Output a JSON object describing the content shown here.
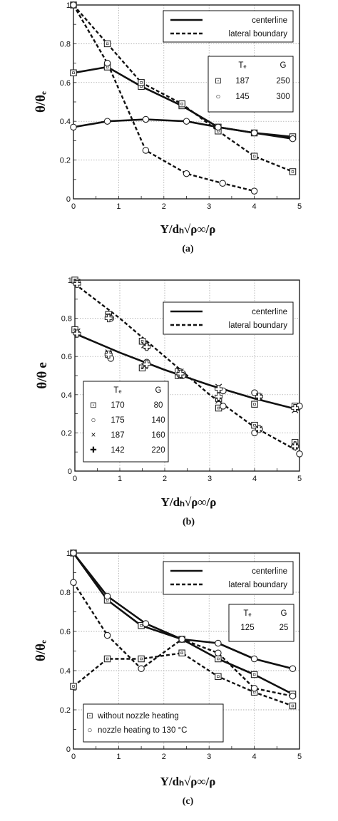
{
  "chart_data": [
    {
      "panel": "(a)",
      "type": "line",
      "xlabel": "Y/dₕ√ρ∞/ρ",
      "ylabel": "θ/θₑ",
      "xlim": [
        0,
        5
      ],
      "ylim": [
        0,
        1
      ],
      "xticks": [
        "0",
        "1",
        "2",
        "3",
        "4",
        "5"
      ],
      "yticks": [
        "0",
        "0.2",
        "0.4",
        "0.6",
        "0.8",
        "1"
      ],
      "grid": true,
      "legend": {
        "position": "top-right",
        "items": [
          "centerline",
          "lateral boundary"
        ]
      },
      "table": {
        "headers": [
          "Tₑ",
          "G"
        ],
        "rows": [
          [
            "⊡",
            "187",
            "250"
          ],
          [
            "○",
            "145",
            "300"
          ]
        ]
      },
      "series": [
        {
          "line": "centerline",
          "marker": "square",
          "x": [
            0,
            0.75,
            1.5,
            2.4,
            3.2,
            4.0,
            4.85
          ],
          "y": [
            0.65,
            0.68,
            0.58,
            0.48,
            0.37,
            0.34,
            0.32
          ]
        },
        {
          "line": "lateral boundary",
          "marker": "square",
          "x": [
            0,
            0.75,
            1.5,
            2.4,
            3.2,
            4.0,
            4.85
          ],
          "y": [
            1.0,
            0.8,
            0.6,
            0.49,
            0.35,
            0.22,
            0.14
          ]
        },
        {
          "line": "centerline",
          "marker": "circle",
          "x": [
            0,
            0.75,
            1.6,
            2.5,
            3.2,
            4.0,
            4.85
          ],
          "y": [
            0.37,
            0.4,
            0.41,
            0.4,
            0.37,
            0.34,
            0.31
          ]
        },
        {
          "line": "lateral boundary",
          "marker": "circle",
          "x": [
            0,
            0.75,
            1.6,
            2.5,
            3.3,
            4.0
          ],
          "y": [
            1.0,
            0.7,
            0.25,
            0.13,
            0.08,
            0.04
          ]
        }
      ]
    },
    {
      "panel": "(b)",
      "type": "line",
      "xlabel": "Y/dₕ√ρ∞/ρ",
      "ylabel": "θ/θ",
      "ylabel_sub": "e",
      "xlim": [
        0,
        5
      ],
      "ylim": [
        0,
        1
      ],
      "xticks": [
        "0",
        "1",
        "2",
        "3",
        "4",
        "5"
      ],
      "yticks": [
        "0",
        "0.2",
        "0.4",
        "0.6",
        "0.8",
        "1"
      ],
      "grid": true,
      "legend": {
        "position": "top-right",
        "items": [
          "centerline",
          "lateral boundary"
        ]
      },
      "table": {
        "headers": [
          "Tₑ",
          "G"
        ],
        "rows": [
          [
            "⊡",
            "170",
            "80"
          ],
          [
            "○",
            "175",
            "140"
          ],
          [
            "×",
            "187",
            "160"
          ],
          [
            "✚",
            "142",
            "220"
          ]
        ]
      },
      "fits": [
        {
          "line": "centerline",
          "x": [
            0,
            1,
            2,
            3,
            4,
            5
          ],
          "y": [
            0.72,
            0.62,
            0.53,
            0.45,
            0.38,
            0.32
          ]
        },
        {
          "line": "lateral boundary",
          "x": [
            0,
            1,
            2,
            3,
            4,
            5
          ],
          "y": [
            0.98,
            0.8,
            0.6,
            0.4,
            0.23,
            0.1
          ]
        }
      ],
      "series": [
        {
          "marker": "square",
          "x": [
            0,
            0.75,
            1.5,
            2.3,
            3.2,
            4.0,
            4.9,
            0,
            0.75,
            1.5,
            2.3,
            3.2,
            4.0,
            4.9
          ],
          "y": [
            0.74,
            0.61,
            0.54,
            0.5,
            0.33,
            0.35,
            0.34,
            1.0,
            0.82,
            0.68,
            0.52,
            0.38,
            0.24,
            0.15
          ]
        },
        {
          "marker": "circle",
          "x": [
            0.05,
            0.8,
            1.6,
            2.4,
            3.3,
            4.0,
            5.0,
            0.05,
            0.8,
            1.6,
            2.4,
            3.3,
            4.0,
            5.0
          ],
          "y": [
            0.72,
            0.59,
            0.57,
            0.51,
            0.42,
            0.41,
            0.34,
            0.99,
            0.8,
            0.65,
            0.5,
            0.34,
            0.2,
            0.09
          ]
        },
        {
          "marker": "cross",
          "x": [
            0.05,
            0.75,
            1.55,
            2.35,
            3.2,
            4.1,
            4.9,
            0.05,
            0.75,
            1.55,
            2.35,
            3.2,
            4.1,
            4.9
          ],
          "y": [
            0.73,
            0.62,
            0.55,
            0.5,
            0.44,
            0.39,
            0.32,
            0.99,
            0.81,
            0.66,
            0.52,
            0.37,
            0.22,
            0.13
          ]
        },
        {
          "marker": "plus",
          "x": [
            0.05,
            0.75,
            1.6,
            2.35,
            3.2,
            4.1,
            4.9,
            0.05,
            0.75,
            1.6,
            2.35,
            3.2,
            4.1,
            4.9
          ],
          "y": [
            0.72,
            0.61,
            0.56,
            0.51,
            0.43,
            0.39,
            0.33,
            0.98,
            0.8,
            0.65,
            0.51,
            0.39,
            0.22,
            0.13
          ]
        }
      ]
    },
    {
      "panel": "(c)",
      "type": "line",
      "xlabel": "Y/dₕ√ρ∞/ρ",
      "ylabel": "θ/θₑ",
      "xlim": [
        0,
        5
      ],
      "ylim": [
        0,
        1
      ],
      "xticks": [
        "0",
        "1",
        "2",
        "3",
        "4",
        "5"
      ],
      "yticks": [
        "0",
        "0.2",
        "0.4",
        "0.6",
        "0.8",
        "1"
      ],
      "grid": true,
      "legend": {
        "position": "top-right",
        "items": [
          "centerline",
          "lateral boundary"
        ]
      },
      "table": {
        "headers": [
          "Tₑ",
          "G"
        ],
        "rows": [
          [
            "",
            "125",
            "25"
          ]
        ]
      },
      "marker_legend": [
        [
          "⊡",
          "without nozzle heating"
        ],
        [
          "○",
          "nozzle heating to 130 °C"
        ]
      ],
      "series": [
        {
          "line": "centerline",
          "marker": "square",
          "x": [
            0,
            0.75,
            1.5,
            2.4,
            3.2,
            4.0,
            4.85
          ],
          "y": [
            1.0,
            0.76,
            0.63,
            0.56,
            0.46,
            0.38,
            0.28
          ]
        },
        {
          "line": "lateral boundary",
          "marker": "square",
          "x": [
            0,
            0.75,
            1.5,
            2.4,
            3.2,
            4.0,
            4.85
          ],
          "y": [
            0.32,
            0.46,
            0.46,
            0.49,
            0.37,
            0.29,
            0.22
          ]
        },
        {
          "line": "centerline",
          "marker": "circle",
          "x": [
            0,
            0.75,
            1.6,
            2.4,
            3.2,
            4.0,
            4.85
          ],
          "y": [
            1.0,
            0.78,
            0.64,
            0.56,
            0.54,
            0.46,
            0.41
          ]
        },
        {
          "line": "lateral boundary",
          "marker": "circle",
          "x": [
            0,
            0.75,
            1.5,
            2.4,
            3.2,
            4.0,
            4.85
          ],
          "y": [
            0.85,
            0.58,
            0.41,
            0.56,
            0.49,
            0.31,
            0.27
          ]
        }
      ]
    }
  ]
}
